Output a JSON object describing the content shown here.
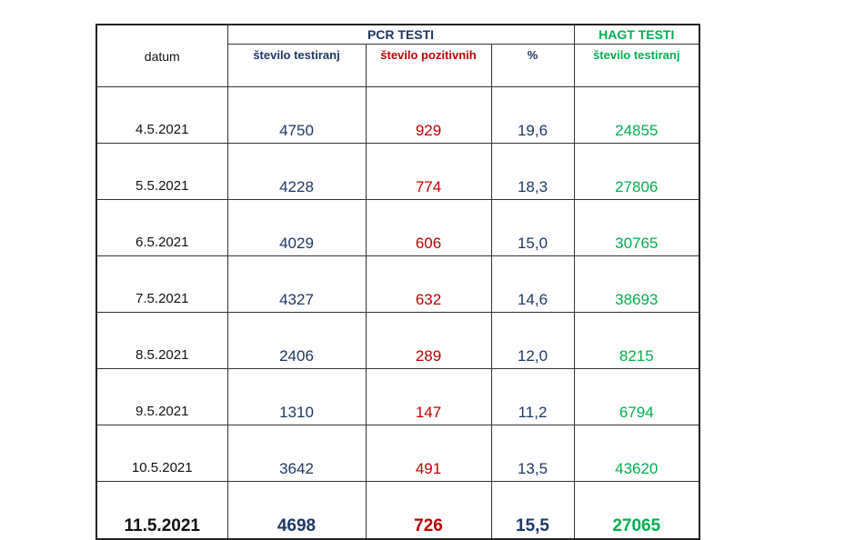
{
  "header": {
    "datum": "datum",
    "pcr_group": "PCR TESTI",
    "hagt_group": "HAGT TESTI",
    "pcr_tests": "število testiranj",
    "pcr_positive": "število pozitivnih",
    "percent": "%",
    "hagt_tests": "število testiranj"
  },
  "colors": {
    "navy": "#1f3864",
    "red": "#c00000",
    "green": "#00b050"
  },
  "rows": [
    {
      "date": "4.5.2021",
      "pcr_tests": "4750",
      "pcr_positive": "929",
      "percent": "19,6",
      "hagt_tests": "24855"
    },
    {
      "date": "5.5.2021",
      "pcr_tests": "4228",
      "pcr_positive": "774",
      "percent": "18,3",
      "hagt_tests": "27806"
    },
    {
      "date": "6.5.2021",
      "pcr_tests": "4029",
      "pcr_positive": "606",
      "percent": "15,0",
      "hagt_tests": "30765"
    },
    {
      "date": "7.5.2021",
      "pcr_tests": "4327",
      "pcr_positive": "632",
      "percent": "14,6",
      "hagt_tests": "38693"
    },
    {
      "date": "8.5.2021",
      "pcr_tests": "2406",
      "pcr_positive": "289",
      "percent": "12,0",
      "hagt_tests": "8215"
    },
    {
      "date": "9.5.2021",
      "pcr_tests": "1310",
      "pcr_positive": "147",
      "percent": "11,2",
      "hagt_tests": "6794"
    },
    {
      "date": "10.5.2021",
      "pcr_tests": "3642",
      "pcr_positive": "491",
      "percent": "13,5",
      "hagt_tests": "43620"
    },
    {
      "date": "11.5.2021",
      "pcr_tests": "4698",
      "pcr_positive": "726",
      "percent": "15,5",
      "hagt_tests": "27065"
    }
  ]
}
